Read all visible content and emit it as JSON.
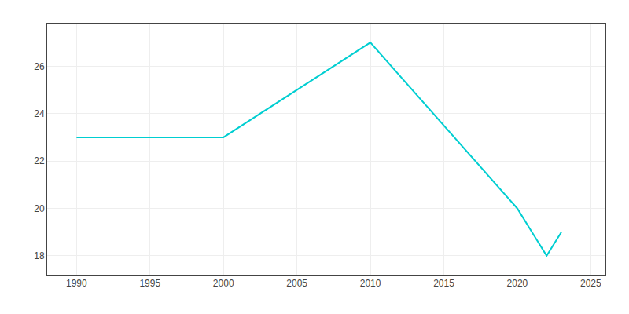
{
  "chart_data": {
    "type": "line",
    "x": [
      1990,
      2000,
      2010,
      2020,
      2021,
      2022,
      2023
    ],
    "values": [
      23,
      23,
      27,
      20,
      19,
      18,
      19
    ],
    "color": "#00CED1",
    "xlim": [
      1988,
      2026
    ],
    "ylim": [
      17.2,
      27.8
    ],
    "xticks": [
      1990,
      1995,
      2000,
      2005,
      2010,
      2015,
      2020,
      2025
    ],
    "yticks": [
      18,
      20,
      22,
      24,
      26
    ],
    "grid": true
  }
}
